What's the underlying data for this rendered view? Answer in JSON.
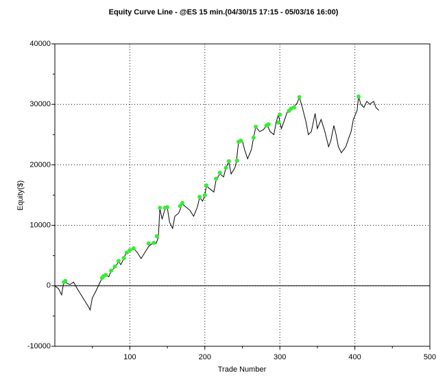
{
  "chart_data": {
    "type": "line",
    "title": "Equity Curve Line - @ES 15 min.(04/30/15 17:15 - 05/03/16 16:00)",
    "xlabel": "Trade Number",
    "ylabel": "Equity($)",
    "xlim": [
      0,
      500
    ],
    "ylim": [
      -10000,
      40000
    ],
    "xticks": [
      100,
      200,
      300,
      400,
      500
    ],
    "yticks": [
      -10000,
      0,
      10000,
      20000,
      30000,
      40000
    ],
    "xminorticks": [
      50,
      150,
      250,
      350,
      450
    ],
    "yminorticks": [
      -5000,
      5000,
      15000,
      25000,
      35000
    ],
    "grid": true,
    "x": [
      0,
      5,
      9,
      12,
      15,
      20,
      25,
      30,
      35,
      40,
      45,
      47,
      50,
      55,
      60,
      63,
      68,
      72,
      75,
      80,
      85,
      88,
      92,
      95,
      100,
      105,
      110,
      115,
      120,
      125,
      130,
      135,
      138,
      140,
      143,
      147,
      150,
      153,
      157,
      160,
      165,
      170,
      175,
      180,
      185,
      190,
      193,
      197,
      200,
      202,
      207,
      212,
      215,
      220,
      225,
      228,
      232,
      235,
      240,
      242,
      245,
      250,
      253,
      257,
      262,
      265,
      268,
      273,
      278,
      283,
      287,
      292,
      295,
      298,
      302,
      305,
      310,
      313,
      318,
      323,
      326,
      330,
      335,
      338,
      342,
      347,
      350,
      355,
      360,
      365,
      368,
      372,
      375,
      378,
      382,
      385,
      388,
      392,
      395,
      398,
      403,
      405,
      408,
      412,
      416,
      420,
      425,
      428,
      432
    ],
    "series": [
      {
        "color": "#000000",
        "values": [
          0,
          -500,
          -1500,
          700,
          500,
          200,
          600,
          -500,
          -1500,
          -2500,
          -3500,
          -4000,
          -2000,
          -800,
          500,
          1300,
          1800,
          1500,
          2500,
          3000,
          4000,
          3500,
          4500,
          5500,
          5800,
          6200,
          5500,
          4500,
          5500,
          6500,
          7000,
          7000,
          8000,
          12800,
          11000,
          12800,
          12900,
          10500,
          9500,
          11500,
          12000,
          13500,
          13000,
          12500,
          11500,
          13000,
          14600,
          14000,
          15000,
          16500,
          16000,
          15500,
          17500,
          18500,
          18000,
          19500,
          20500,
          18500,
          19500,
          20500,
          23800,
          24000,
          22500,
          21000,
          22500,
          24500,
          26300,
          25500,
          25800,
          26600,
          25500,
          25000,
          27000,
          28300,
          26000,
          27000,
          28800,
          29300,
          29500,
          30200,
          31200,
          29500,
          27000,
          25000,
          25500,
          28500,
          26000,
          27500,
          25500,
          23000,
          24000,
          26500,
          25000,
          23000,
          22000,
          22500,
          23000,
          24500,
          25500,
          27500,
          29000,
          31300,
          30000,
          29500,
          30500,
          30000,
          30500,
          29500,
          29000
        ]
      }
    ],
    "markers": {
      "color": "#33ee33",
      "x": [
        12,
        14,
        63,
        65,
        68,
        75,
        80,
        85,
        92,
        96,
        100,
        105,
        125,
        132,
        136,
        140,
        147,
        150,
        167,
        170,
        193,
        200,
        202,
        215,
        220,
        228,
        232,
        243,
        245,
        248,
        265,
        268,
        282,
        285,
        298,
        300,
        312,
        315,
        319,
        326,
        405
      ],
      "values": [
        600,
        800,
        1300,
        1600,
        1800,
        2500,
        3200,
        4100,
        4600,
        5500,
        5900,
        6200,
        7000,
        7100,
        8200,
        12900,
        12900,
        13000,
        13200,
        13700,
        14700,
        15000,
        16600,
        17700,
        18700,
        19500,
        20600,
        20700,
        23800,
        24000,
        24500,
        26300,
        26500,
        26700,
        27000,
        28300,
        28900,
        29300,
        29500,
        31200,
        31300
      ]
    }
  }
}
